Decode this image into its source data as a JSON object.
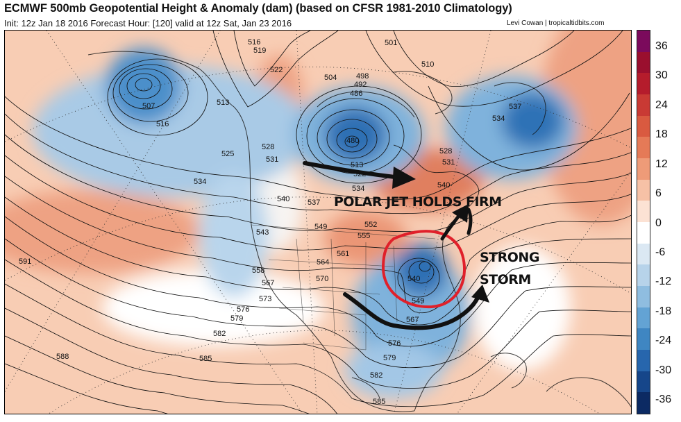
{
  "header": {
    "title": "ECMWF 500mb Geopotential Height & Anomaly (dam) (based on CFSR 1981-2010 Climatology)",
    "subtitle": "Init: 12z Jan 18 2016   Forecast Hour: [120]   valid at 12z Sat, Jan 23 2016",
    "credit": "Levi Cowan | tropicaltidbits.com"
  },
  "colorbar": {
    "labels": [
      "36",
      "30",
      "24",
      "18",
      "12",
      "6",
      "0",
      "-6",
      "-12",
      "-18",
      "-24",
      "-30",
      "-36"
    ],
    "colors": [
      "#7b0a5c",
      "#9a0f2e",
      "#b51c2c",
      "#c93a34",
      "#d95a40",
      "#e57a57",
      "#ee9b78",
      "#f6c1a6",
      "#fce2d4",
      "#ffffff",
      "#dbe8f3",
      "#b7d3ea",
      "#8fbde0",
      "#63a3d4",
      "#3f86c2",
      "#2766ad",
      "#16468a",
      "#0c2a63"
    ]
  },
  "height_labels": [
    {
      "text": "516",
      "id": "h516a"
    },
    {
      "text": "519",
      "id": "h519a"
    },
    {
      "text": "522",
      "id": "h522a"
    },
    {
      "text": "507",
      "id": "h507"
    },
    {
      "text": "513",
      "id": "h513a"
    },
    {
      "text": "516",
      "id": "h516b"
    },
    {
      "text": "525",
      "id": "h525"
    },
    {
      "text": "528",
      "id": "h528a"
    },
    {
      "text": "531",
      "id": "h531a"
    },
    {
      "text": "534",
      "id": "h534a"
    },
    {
      "text": "540",
      "id": "h540a"
    },
    {
      "text": "537",
      "id": "h537a"
    },
    {
      "text": "543",
      "id": "h543"
    },
    {
      "text": "549",
      "id": "h549a"
    },
    {
      "text": "558",
      "id": "h558"
    },
    {
      "text": "561",
      "id": "h561"
    },
    {
      "text": "564",
      "id": "h564"
    },
    {
      "text": "567",
      "id": "h567a"
    },
    {
      "text": "570",
      "id": "h570"
    },
    {
      "text": "573",
      "id": "h573"
    },
    {
      "text": "576",
      "id": "h576a"
    },
    {
      "text": "579",
      "id": "h579a"
    },
    {
      "text": "582",
      "id": "h582a"
    },
    {
      "text": "585",
      "id": "h585a"
    },
    {
      "text": "588",
      "id": "h588"
    },
    {
      "text": "591",
      "id": "h591"
    },
    {
      "text": "501",
      "id": "h501"
    },
    {
      "text": "510",
      "id": "h510"
    },
    {
      "text": "504",
      "id": "h504"
    },
    {
      "text": "498",
      "id": "h498"
    },
    {
      "text": "492",
      "id": "h492"
    },
    {
      "text": "486",
      "id": "h486"
    },
    {
      "text": "480",
      "id": "h480"
    },
    {
      "text": "513",
      "id": "h513b"
    },
    {
      "text": "522",
      "id": "h522b"
    },
    {
      "text": "534",
      "id": "h534b"
    },
    {
      "text": "537",
      "id": "h537b"
    },
    {
      "text": "534",
      "id": "h534c"
    },
    {
      "text": "528",
      "id": "h528b"
    },
    {
      "text": "531",
      "id": "h531b"
    },
    {
      "text": "540",
      "id": "h540b"
    },
    {
      "text": "552",
      "id": "h552"
    },
    {
      "text": "555",
      "id": "h555"
    },
    {
      "text": "540",
      "id": "h540c"
    },
    {
      "text": "549",
      "id": "h549b"
    },
    {
      "text": "567",
      "id": "h567b"
    },
    {
      "text": "576",
      "id": "h576b"
    },
    {
      "text": "579",
      "id": "h579b"
    },
    {
      "text": "582",
      "id": "h582b"
    },
    {
      "text": "585",
      "id": "h585b"
    }
  ],
  "annotations": {
    "polar_jet": "POLAR JET HOLDS FIRM",
    "strong": "STRONG",
    "storm": "STORM"
  },
  "colors": {
    "negative_anomaly": "#2766ad",
    "positive_anomaly": "#e57a57",
    "storm_circle": "#e0202a",
    "arrows": "#111111"
  }
}
